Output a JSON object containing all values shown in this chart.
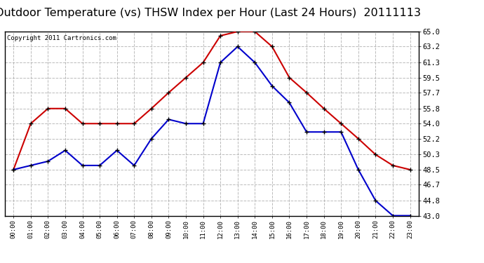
{
  "title": "Outdoor Temperature (vs) THSW Index per Hour (Last 24 Hours)  20111113",
  "copyright": "Copyright 2011 Cartronics.com",
  "x_labels": [
    "00:00",
    "01:00",
    "02:00",
    "03:00",
    "04:00",
    "05:00",
    "06:00",
    "07:00",
    "08:00",
    "09:00",
    "10:00",
    "11:00",
    "12:00",
    "13:00",
    "14:00",
    "15:00",
    "16:00",
    "17:00",
    "18:00",
    "19:00",
    "20:00",
    "21:00",
    "22:00",
    "23:00"
  ],
  "red_data": [
    48.5,
    54.0,
    55.8,
    55.8,
    54.0,
    54.0,
    54.0,
    54.0,
    55.8,
    57.7,
    59.5,
    61.3,
    64.5,
    65.0,
    65.0,
    63.2,
    59.5,
    57.7,
    55.8,
    54.0,
    52.2,
    50.3,
    49.0,
    48.5
  ],
  "blue_data": [
    48.5,
    49.0,
    49.5,
    50.8,
    49.0,
    49.0,
    50.8,
    49.0,
    52.2,
    54.5,
    54.0,
    54.0,
    61.3,
    63.2,
    61.3,
    58.5,
    56.5,
    53.0,
    53.0,
    53.0,
    48.5,
    44.8,
    43.0,
    43.0
  ],
  "y_ticks": [
    43.0,
    44.8,
    46.7,
    48.5,
    50.3,
    52.2,
    54.0,
    55.8,
    57.7,
    59.5,
    61.3,
    63.2,
    65.0
  ],
  "y_min": 43.0,
  "y_max": 65.0,
  "red_color": "#cc0000",
  "blue_color": "#0000cc",
  "grid_color": "#aaaaaa",
  "bg_color": "#ffffff",
  "title_fontsize": 11.5,
  "copyright_fontsize": 6.5
}
